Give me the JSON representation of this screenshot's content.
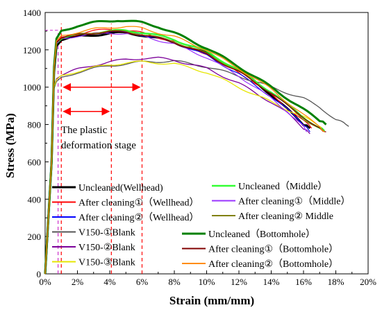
{
  "chart_data": {
    "type": "line",
    "xlabel": "Strain (mm/mm)",
    "ylabel": "Stress (MPa)",
    "xlim": [
      0,
      20
    ],
    "ylim": [
      0,
      1400
    ],
    "x_ticks": [
      0,
      2,
      4,
      6,
      8,
      10,
      12,
      14,
      16,
      18,
      20
    ],
    "x_tick_labels": [
      "0%",
      "2%",
      "4%",
      "6%",
      "8%",
      "10%",
      "12%",
      "14%",
      "16%",
      "18%",
      "20%"
    ],
    "y_ticks": [
      0,
      200,
      400,
      600,
      800,
      1000,
      1200,
      1400
    ],
    "y_tick_labels": [
      "0",
      "200",
      "400",
      "600",
      "800",
      "1000",
      "1200",
      "1400"
    ],
    "annotation": {
      "text_line1": "The plastic",
      "text_line2": "deformation stage"
    },
    "reference_lines": {
      "hline_y": 1305,
      "vlines_x": [
        0.8,
        1.0,
        4.1,
        6.0
      ]
    },
    "series": [
      {
        "name": "Uncleaned(Wellhead)",
        "color": "#000000",
        "width": 3,
        "points": [
          [
            0,
            0
          ],
          [
            0.4,
            600
          ],
          [
            0.55,
            1080
          ],
          [
            0.7,
            1220
          ],
          [
            1.0,
            1255
          ],
          [
            2,
            1270
          ],
          [
            3,
            1280
          ],
          [
            4,
            1288
          ],
          [
            5,
            1290
          ],
          [
            6,
            1280
          ],
          [
            8,
            1240
          ],
          [
            10,
            1180
          ],
          [
            12,
            1090
          ],
          [
            13,
            1030
          ],
          [
            14,
            960
          ],
          [
            15,
            880
          ],
          [
            16,
            800
          ],
          [
            16.4,
            780
          ]
        ]
      },
      {
        "name": "After cleaning①（Wellhead）",
        "color": "#ff0000",
        "width": 1.2,
        "points": [
          [
            0,
            0
          ],
          [
            0.4,
            600
          ],
          [
            0.55,
            1100
          ],
          [
            0.7,
            1240
          ],
          [
            1,
            1265
          ],
          [
            2,
            1285
          ],
          [
            3,
            1300
          ],
          [
            4,
            1310
          ],
          [
            5,
            1305
          ],
          [
            6,
            1290
          ],
          [
            8,
            1245
          ],
          [
            10,
            1180
          ],
          [
            12,
            1080
          ],
          [
            14,
            960
          ],
          [
            15,
            890
          ],
          [
            16,
            820
          ],
          [
            16.5,
            780
          ]
        ]
      },
      {
        "name": "After cleaning②（Wellhead）",
        "color": "#0000ff",
        "width": 1.2,
        "points": [
          [
            0,
            0
          ],
          [
            0.4,
            600
          ],
          [
            0.55,
            1100
          ],
          [
            0.7,
            1235
          ],
          [
            1,
            1260
          ],
          [
            2,
            1278
          ],
          [
            3,
            1290
          ],
          [
            4,
            1295
          ],
          [
            5,
            1293
          ],
          [
            6,
            1280
          ],
          [
            8,
            1240
          ],
          [
            10,
            1170
          ],
          [
            12,
            1070
          ],
          [
            14,
            950
          ],
          [
            15,
            880
          ],
          [
            16,
            800
          ],
          [
            16.4,
            760
          ]
        ]
      },
      {
        "name": "V150-①Blank",
        "color": "#555555",
        "width": 1.3,
        "points": [
          [
            0,
            0
          ],
          [
            0.4,
            600
          ],
          [
            0.5,
            980
          ],
          [
            0.7,
            1030
          ],
          [
            1,
            1050
          ],
          [
            2,
            1080
          ],
          [
            3,
            1100
          ],
          [
            4,
            1115
          ],
          [
            5,
            1125
          ],
          [
            6,
            1135
          ],
          [
            8,
            1140
          ],
          [
            10,
            1110
          ],
          [
            12,
            1060
          ],
          [
            14,
            1000
          ],
          [
            16,
            940
          ],
          [
            17,
            890
          ],
          [
            18,
            830
          ],
          [
            18.8,
            790
          ]
        ]
      },
      {
        "name": "V150-②Blank",
        "color": "#7b0099",
        "width": 1.3,
        "points": [
          [
            0,
            0
          ],
          [
            0.4,
            600
          ],
          [
            0.5,
            990
          ],
          [
            0.7,
            1045
          ],
          [
            1,
            1065
          ],
          [
            2,
            1095
          ],
          [
            3,
            1118
          ],
          [
            4,
            1135
          ],
          [
            5,
            1148
          ],
          [
            6,
            1155
          ],
          [
            7,
            1155
          ],
          [
            8,
            1145
          ],
          [
            10,
            1100
          ],
          [
            12,
            1020
          ],
          [
            14,
            920
          ],
          [
            15,
            860
          ],
          [
            16,
            780
          ],
          [
            16.4,
            750
          ]
        ]
      },
      {
        "name": "V150-③Blank",
        "color": "#e6e600",
        "width": 1.3,
        "points": [
          [
            0,
            0
          ],
          [
            0.4,
            600
          ],
          [
            0.5,
            985
          ],
          [
            0.7,
            1040
          ],
          [
            1,
            1060
          ],
          [
            2,
            1085
          ],
          [
            3,
            1105
          ],
          [
            4,
            1120
          ],
          [
            5,
            1130
          ],
          [
            6,
            1135
          ],
          [
            8,
            1125
          ],
          [
            10,
            1080
          ],
          [
            12,
            1000
          ],
          [
            14,
            920
          ],
          [
            16,
            840
          ],
          [
            17,
            790
          ],
          [
            17.2,
            770
          ]
        ]
      },
      {
        "name": "Uncleaned（Middle）",
        "color": "#33ff33",
        "width": 2.5,
        "points": [
          [
            0,
            0
          ],
          [
            0.4,
            600
          ],
          [
            0.55,
            1100
          ],
          [
            0.7,
            1235
          ],
          [
            1,
            1262
          ],
          [
            2,
            1280
          ],
          [
            3,
            1292
          ],
          [
            4,
            1300
          ],
          [
            5,
            1302
          ],
          [
            6,
            1295
          ],
          [
            8,
            1255
          ],
          [
            10,
            1190
          ],
          [
            12,
            1090
          ],
          [
            14,
            975
          ],
          [
            15,
            905
          ],
          [
            16,
            840
          ],
          [
            17,
            780
          ],
          [
            17.3,
            765
          ]
        ]
      },
      {
        "name": "After cleaning①（Middle）",
        "color": "#9933ff",
        "width": 1.2,
        "points": [
          [
            0,
            0
          ],
          [
            0.4,
            600
          ],
          [
            0.55,
            1095
          ],
          [
            0.7,
            1232
          ],
          [
            1,
            1258
          ],
          [
            2,
            1275
          ],
          [
            3,
            1285
          ],
          [
            4,
            1290
          ],
          [
            5,
            1288
          ],
          [
            6,
            1275
          ],
          [
            8,
            1230
          ],
          [
            10,
            1160
          ],
          [
            12,
            1060
          ],
          [
            14,
            940
          ],
          [
            15,
            870
          ],
          [
            16,
            790
          ],
          [
            16.2,
            760
          ]
        ]
      },
      {
        "name": "After cleaning② Middle",
        "color": "#808000",
        "width": 1.2,
        "points": [
          [
            0,
            0
          ],
          [
            0.4,
            600
          ],
          [
            0.55,
            1100
          ],
          [
            0.7,
            1238
          ],
          [
            1,
            1262
          ],
          [
            2,
            1282
          ],
          [
            3,
            1295
          ],
          [
            4,
            1300
          ],
          [
            5,
            1298
          ],
          [
            6,
            1285
          ],
          [
            8,
            1245
          ],
          [
            10,
            1180
          ],
          [
            12,
            1085
          ],
          [
            14,
            970
          ],
          [
            15,
            900
          ],
          [
            16,
            830
          ],
          [
            17,
            780
          ],
          [
            17.3,
            760
          ]
        ]
      },
      {
        "name": "Uncleaned（Bottomhole）",
        "color": "#008000",
        "width": 3,
        "points": [
          [
            0,
            0
          ],
          [
            0.4,
            600
          ],
          [
            0.55,
            1110
          ],
          [
            0.7,
            1260
          ],
          [
            1,
            1300
          ],
          [
            2,
            1330
          ],
          [
            3,
            1345
          ],
          [
            4,
            1355
          ],
          [
            4.5,
            1360
          ],
          [
            5,
            1355
          ],
          [
            6,
            1345
          ],
          [
            7,
            1325
          ],
          [
            8,
            1290
          ],
          [
            10,
            1210
          ],
          [
            12,
            1110
          ],
          [
            14,
            1000
          ],
          [
            15,
            940
          ],
          [
            16,
            880
          ],
          [
            17,
            820
          ],
          [
            17.4,
            800
          ]
        ]
      },
      {
        "name": "After cleaning①（Bottomhole）",
        "color": "#800000",
        "width": 1.3,
        "points": [
          [
            0,
            0
          ],
          [
            0.4,
            600
          ],
          [
            0.55,
            1100
          ],
          [
            0.7,
            1240
          ],
          [
            1,
            1265
          ],
          [
            2,
            1280
          ],
          [
            3,
            1290
          ],
          [
            4,
            1295
          ],
          [
            5,
            1292
          ],
          [
            6,
            1282
          ],
          [
            8,
            1240
          ],
          [
            10,
            1175
          ],
          [
            12,
            1080
          ],
          [
            14,
            970
          ],
          [
            15,
            900
          ],
          [
            16,
            840
          ],
          [
            17,
            780
          ],
          [
            17.4,
            760
          ]
        ]
      },
      {
        "name": "After cleaning②（Bottomhole）",
        "color": "#ff8c00",
        "width": 1.3,
        "points": [
          [
            0,
            0
          ],
          [
            0.4,
            600
          ],
          [
            0.55,
            1105
          ],
          [
            0.7,
            1248
          ],
          [
            1,
            1275
          ],
          [
            2,
            1295
          ],
          [
            3,
            1310
          ],
          [
            4,
            1320
          ],
          [
            5,
            1325
          ],
          [
            6,
            1315
          ],
          [
            8,
            1270
          ],
          [
            10,
            1200
          ],
          [
            12,
            1100
          ],
          [
            14,
            990
          ],
          [
            15,
            920
          ],
          [
            16,
            850
          ],
          [
            17,
            790
          ],
          [
            17.3,
            760
          ]
        ]
      }
    ],
    "legend_groups": [
      [
        0,
        1,
        2,
        3,
        4,
        5
      ],
      [
        6,
        7,
        8
      ],
      [
        9,
        10,
        11
      ]
    ]
  }
}
